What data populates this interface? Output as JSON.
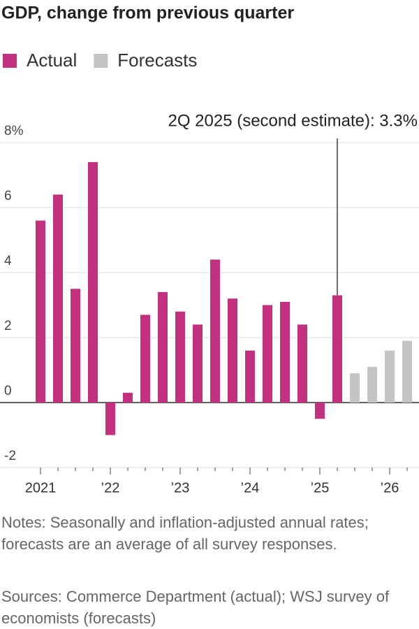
{
  "chart_data": {
    "type": "bar",
    "title": "GDP, change from previous quarter",
    "categories": [
      "2021",
      null,
      null,
      null,
      "’22",
      null,
      null,
      null,
      "’23",
      null,
      null,
      null,
      "’24",
      null,
      null,
      null,
      "’25",
      null,
      null,
      null,
      "’26",
      null
    ],
    "series": [
      {
        "name": "Actual",
        "color": "#c2307e",
        "values": [
          5.6,
          6.4,
          3.5,
          7.4,
          -1.0,
          0.3,
          2.7,
          3.4,
          2.8,
          2.4,
          4.4,
          3.2,
          1.6,
          3.0,
          3.1,
          2.4,
          -0.5,
          3.3,
          null,
          null,
          null,
          null
        ]
      },
      {
        "name": "Forecasts",
        "color": "#c4c4c4",
        "values": [
          null,
          null,
          null,
          null,
          null,
          null,
          null,
          null,
          null,
          null,
          null,
          null,
          null,
          null,
          null,
          null,
          null,
          null,
          0.9,
          1.1,
          1.6,
          1.9
        ]
      }
    ],
    "ylim": [
      -2,
      8
    ],
    "yticks": [
      -2,
      0,
      2,
      4,
      6,
      {
        "value": 8,
        "label": "8%"
      }
    ],
    "grid": true,
    "annotation": "2Q 2025 (second estimate): 3.3%",
    "notes": "Notes: Seasonally and inflation-adjusted annual rates; forecasts are an average of all survey responses.",
    "sources": "Sources: Commerce Department (actual); WSJ survey of economists (forecasts)"
  }
}
